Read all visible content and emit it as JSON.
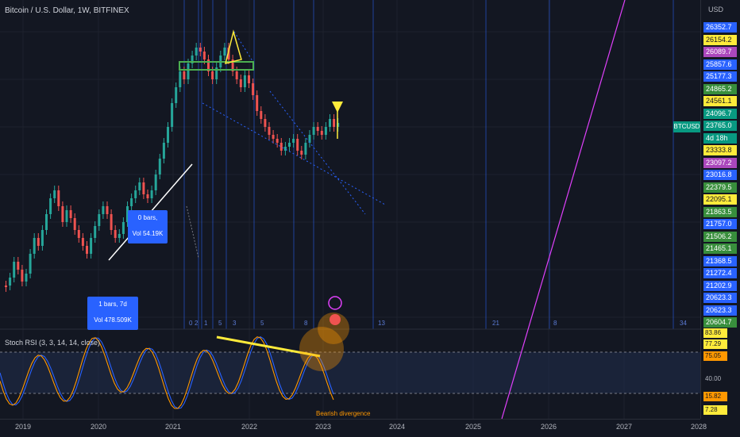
{
  "header": {
    "title": "Bitcoin / U.S. Dollar, 1W, BITFINEX"
  },
  "axis": {
    "currency": "USD"
  },
  "price_tags": [
    {
      "label": "26352.7",
      "color": "#2962ff"
    },
    {
      "label": "26154.2",
      "color": "#ffeb3b",
      "text": "#131722"
    },
    {
      "label": "26089.7",
      "color": "#ab47bc"
    },
    {
      "label": "25857.6",
      "color": "#2962ff"
    },
    {
      "label": "25177.3",
      "color": "#2962ff"
    },
    {
      "label": "24865.2",
      "color": "#388e3c"
    },
    {
      "label": "24561.1",
      "color": "#ffeb3b",
      "text": "#131722"
    },
    {
      "label": "24096.7",
      "color": "#089981"
    },
    {
      "label": "23765.0",
      "color": "#089981"
    },
    {
      "label": "4d 18h",
      "color": "#089981"
    },
    {
      "label": "23333.8",
      "color": "#ffeb3b",
      "text": "#131722"
    },
    {
      "label": "23097.2",
      "color": "#ab47bc"
    },
    {
      "label": "23016.8",
      "color": "#2962ff"
    },
    {
      "label": "22379.5",
      "color": "#388e3c"
    },
    {
      "label": "22095.1",
      "color": "#ffeb3b",
      "text": "#131722"
    },
    {
      "label": "21863.5",
      "color": "#388e3c"
    },
    {
      "label": "21757.0",
      "color": "#2962ff"
    },
    {
      "label": "21506.2",
      "color": "#388e3c"
    },
    {
      "label": "21465.1",
      "color": "#388e3c"
    },
    {
      "label": "21368.5",
      "color": "#2962ff"
    },
    {
      "label": "21272.4",
      "color": "#2962ff"
    },
    {
      "label": "21202.9",
      "color": "#2962ff"
    },
    {
      "label": "20623.3",
      "color": "#2962ff"
    },
    {
      "label": "20623.3",
      "color": "#2962ff"
    },
    {
      "label": "20604.7",
      "color": "#388e3c"
    }
  ],
  "symbol_badge": "BTCUSD",
  "years": [
    "2019",
    "2020",
    "2021",
    "2022",
    "2023",
    "2024",
    "2025",
    "2026",
    "2027",
    "2028"
  ],
  "bars_boxes": [
    {
      "line1": "0 bars,",
      "line2": "Vol 54.19K"
    },
    {
      "line1": "1 bars, 7d",
      "line2": "Vol 478.509K"
    }
  ],
  "cycle_labels": [
    "0",
    "1",
    "2",
    "3",
    "5",
    "8",
    "13",
    "21",
    "34",
    "8",
    "5"
  ],
  "rsi": {
    "label": "Stoch RSI (3, 3, 14, 14, close)",
    "tags": [
      {
        "label": "83.86",
        "color": "#ffeb3b"
      },
      {
        "label": "77.29",
        "color": "#ffeb3b"
      },
      {
        "label": "75.05",
        "color": "#ff9800"
      },
      {
        "label": "40.00",
        "color": "#131722",
        "text": "#b2b5be"
      },
      {
        "label": "15.82",
        "color": "#ff9800"
      },
      {
        "label": "7.28",
        "color": "#ffeb3b"
      }
    ]
  },
  "annotation": {
    "divergence": "Bearish divergence"
  }
}
